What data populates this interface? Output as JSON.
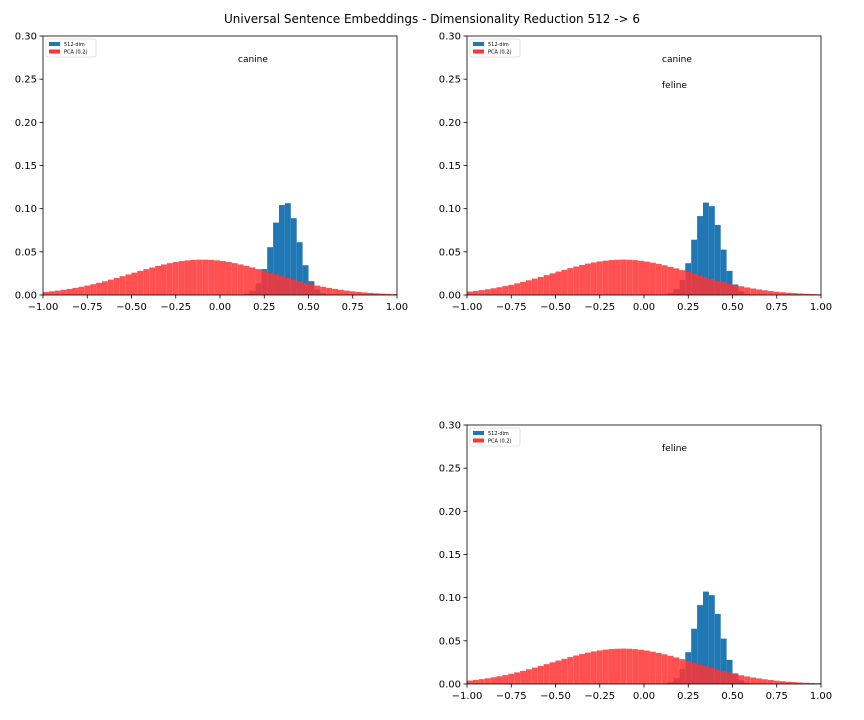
{
  "figure": {
    "title": "Universal Sentence Embeddings - Dimensionality Reduction 512 -> 6"
  },
  "chart_data": [
    {
      "type": "histogram",
      "xlim": [
        -1.0,
        1.0
      ],
      "ylim": [
        0.0,
        0.3
      ],
      "x_ticks": [
        "−1.00",
        "−0.75",
        "−0.50",
        "−0.25",
        "0.00",
        "0.25",
        "0.50",
        "0.75",
        "1.00"
      ],
      "y_ticks": [
        "0.00",
        "0.05",
        "0.10",
        "0.15",
        "0.20",
        "0.25",
        "0.30"
      ],
      "legend": {
        "position": "upper-left"
      },
      "annotations": [
        "canine"
      ],
      "series": [
        {
          "name": "512-dim",
          "color": "#1f77b4",
          "distribution": {
            "mean": 0.37,
            "std": 0.075,
            "peak": 0.108,
            "range": [
              0.05,
              0.65
            ]
          }
        },
        {
          "name": "PCA (0.2)",
          "color": "#ff3333",
          "distribution": {
            "mean": -0.1,
            "std": 0.4,
            "peak": 0.041,
            "range": [
              -1.0,
              1.0
            ]
          }
        }
      ]
    },
    {
      "type": "histogram",
      "xlim": [
        -1.0,
        1.0
      ],
      "ylim": [
        0.0,
        0.3
      ],
      "x_ticks": [
        "−1.00",
        "−0.75",
        "−0.50",
        "−0.25",
        "0.00",
        "0.25",
        "0.50",
        "0.75",
        "1.00"
      ],
      "y_ticks": [
        "0.00",
        "0.05",
        "0.10",
        "0.15",
        "0.20",
        "0.25",
        "0.30"
      ],
      "legend": {
        "position": "upper-left"
      },
      "annotations": [
        "canine",
        "feline"
      ],
      "series": [
        {
          "name": "512-dim",
          "color": "#1f77b4",
          "distribution": {
            "mean": 0.36,
            "std": 0.075,
            "peak": 0.108,
            "range": [
              0.05,
              0.65
            ]
          }
        },
        {
          "name": "PCA (0.2)",
          "color": "#ff3333",
          "distribution": {
            "mean": -0.12,
            "std": 0.4,
            "peak": 0.041,
            "range": [
              -1.0,
              1.0
            ]
          }
        }
      ]
    },
    {
      "type": "histogram",
      "xlim": [
        -1.0,
        1.0
      ],
      "ylim": [
        0.0,
        0.3
      ],
      "x_ticks": [
        "−1.00",
        "−0.75",
        "−0.50",
        "−0.25",
        "0.00",
        "0.25",
        "0.50",
        "0.75",
        "1.00"
      ],
      "y_ticks": [
        "0.00",
        "0.05",
        "0.10",
        "0.15",
        "0.20",
        "0.25",
        "0.30"
      ],
      "legend": {
        "position": "upper-left"
      },
      "annotations": [
        "feline"
      ],
      "series": [
        {
          "name": "512-dim",
          "color": "#1f77b4",
          "distribution": {
            "mean": 0.36,
            "std": 0.075,
            "peak": 0.108,
            "range": [
              0.05,
              0.65
            ]
          }
        },
        {
          "name": "PCA (0.2)",
          "color": "#ff3333",
          "distribution": {
            "mean": -0.12,
            "std": 0.4,
            "peak": 0.041,
            "range": [
              -1.0,
              1.0
            ]
          }
        }
      ]
    }
  ]
}
